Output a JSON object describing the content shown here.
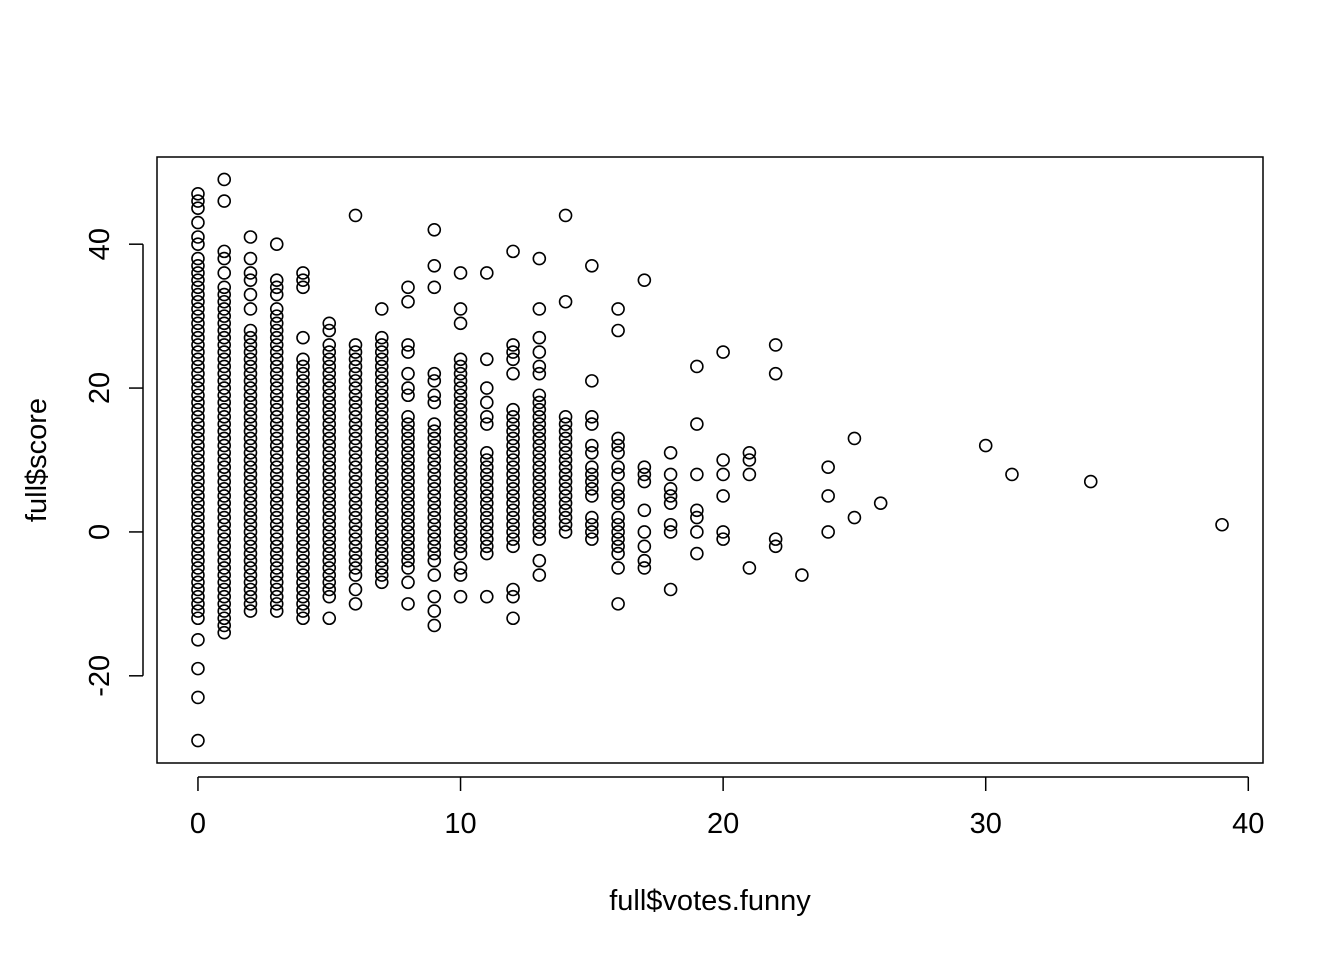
{
  "chart_data": {
    "type": "scatter",
    "title": "",
    "xlabel": "full$votes.funny",
    "ylabel": "full$score",
    "xlim": [
      -1.56,
      40.56
    ],
    "ylim": [
      -32.12,
      52.12
    ],
    "xticks": [
      0,
      10,
      20,
      30,
      40
    ],
    "yticks": [
      -20,
      0,
      20,
      40
    ],
    "marker": "open-circle",
    "grid": false,
    "legend": "none",
    "columns": [
      {
        "x": 0,
        "ymin": -12,
        "ymax": 36,
        "extra": [
          -29,
          -23,
          -19,
          -15,
          37,
          38,
          40,
          41,
          43,
          45,
          46,
          47
        ]
      },
      {
        "x": 1,
        "ymin": -14,
        "ymax": 34,
        "extra": [
          36,
          38,
          39,
          46,
          49
        ]
      },
      {
        "x": 2,
        "ymin": -11,
        "ymax": 28,
        "extra": [
          31,
          33,
          35,
          36,
          38,
          41
        ]
      },
      {
        "x": 3,
        "ymin": -11,
        "ymax": 30,
        "extra": [
          31,
          33,
          34,
          35,
          40
        ]
      },
      {
        "x": 4,
        "ymin": -12,
        "ymax": 24,
        "extra": [
          27,
          34,
          35,
          36
        ]
      },
      {
        "x": 5,
        "ymin": -9,
        "ymax": 26,
        "extra": [
          -12,
          28,
          29
        ]
      },
      {
        "x": 6,
        "ymin": -6,
        "ymax": 26,
        "extra": [
          -10,
          -8,
          44
        ]
      },
      {
        "x": 7,
        "ymin": -7,
        "ymax": 27,
        "extra": [
          31
        ]
      },
      {
        "x": 8,
        "ymin": -5,
        "ymax": 16,
        "extra": [
          -10,
          -7,
          19,
          20,
          22,
          25,
          26,
          32,
          34
        ]
      },
      {
        "x": 9,
        "ymin": -4,
        "ymax": 15,
        "extra": [
          -13,
          -11,
          -9,
          -6,
          18,
          19,
          21,
          22,
          34,
          37,
          42
        ]
      },
      {
        "x": 10,
        "ymin": -3,
        "ymax": 24,
        "extra": [
          -9,
          -6,
          -5,
          29,
          31,
          36
        ]
      },
      {
        "x": 11,
        "ymin": -3,
        "ymax": 11,
        "extra": [
          -9,
          15,
          16,
          18,
          20,
          24,
          36
        ]
      },
      {
        "x": 12,
        "ymin": -2,
        "ymax": 17,
        "extra": [
          -12,
          -9,
          -8,
          22,
          24,
          25,
          26,
          39
        ]
      },
      {
        "x": 13,
        "ymin": -1,
        "ymax": 19,
        "extra": [
          -6,
          -4,
          22,
          23,
          25,
          27,
          31,
          38
        ]
      },
      {
        "x": 14,
        "ymin": 0,
        "ymax": 16,
        "extra": [
          32,
          44
        ]
      }
    ],
    "points": [
      [
        15,
        -1
      ],
      [
        15,
        0
      ],
      [
        15,
        1
      ],
      [
        15,
        2
      ],
      [
        15,
        5
      ],
      [
        15,
        6
      ],
      [
        15,
        7
      ],
      [
        15,
        8
      ],
      [
        15,
        9
      ],
      [
        15,
        11
      ],
      [
        15,
        12
      ],
      [
        15,
        15
      ],
      [
        15,
        16
      ],
      [
        15,
        21
      ],
      [
        15,
        37
      ],
      [
        16,
        -10
      ],
      [
        16,
        -5
      ],
      [
        16,
        -3
      ],
      [
        16,
        -2
      ],
      [
        16,
        -1
      ],
      [
        16,
        0
      ],
      [
        16,
        1
      ],
      [
        16,
        2
      ],
      [
        16,
        4
      ],
      [
        16,
        5
      ],
      [
        16,
        6
      ],
      [
        16,
        8
      ],
      [
        16,
        9
      ],
      [
        16,
        11
      ],
      [
        16,
        12
      ],
      [
        16,
        13
      ],
      [
        16,
        28
      ],
      [
        16,
        31
      ],
      [
        17,
        -5
      ],
      [
        17,
        -4
      ],
      [
        17,
        -2
      ],
      [
        17,
        0
      ],
      [
        17,
        3
      ],
      [
        17,
        7
      ],
      [
        17,
        8
      ],
      [
        17,
        9
      ],
      [
        17,
        35
      ],
      [
        18,
        -8
      ],
      [
        18,
        0
      ],
      [
        18,
        1
      ],
      [
        18,
        4
      ],
      [
        18,
        5
      ],
      [
        18,
        6
      ],
      [
        18,
        8
      ],
      [
        18,
        11
      ],
      [
        19,
        -3
      ],
      [
        19,
        0
      ],
      [
        19,
        2
      ],
      [
        19,
        3
      ],
      [
        19,
        8
      ],
      [
        19,
        15
      ],
      [
        19,
        23
      ],
      [
        20,
        -1
      ],
      [
        20,
        0
      ],
      [
        20,
        5
      ],
      [
        20,
        8
      ],
      [
        20,
        10
      ],
      [
        20,
        25
      ],
      [
        21,
        -5
      ],
      [
        21,
        8
      ],
      [
        21,
        10
      ],
      [
        21,
        11
      ],
      [
        22,
        -2
      ],
      [
        22,
        -1
      ],
      [
        22,
        22
      ],
      [
        22,
        26
      ],
      [
        23,
        -6
      ],
      [
        24,
        0
      ],
      [
        24,
        5
      ],
      [
        24,
        9
      ],
      [
        25,
        2
      ],
      [
        25,
        13
      ],
      [
        26,
        4
      ],
      [
        30,
        12
      ],
      [
        31,
        8
      ],
      [
        34,
        7
      ],
      [
        39,
        1
      ]
    ]
  }
}
